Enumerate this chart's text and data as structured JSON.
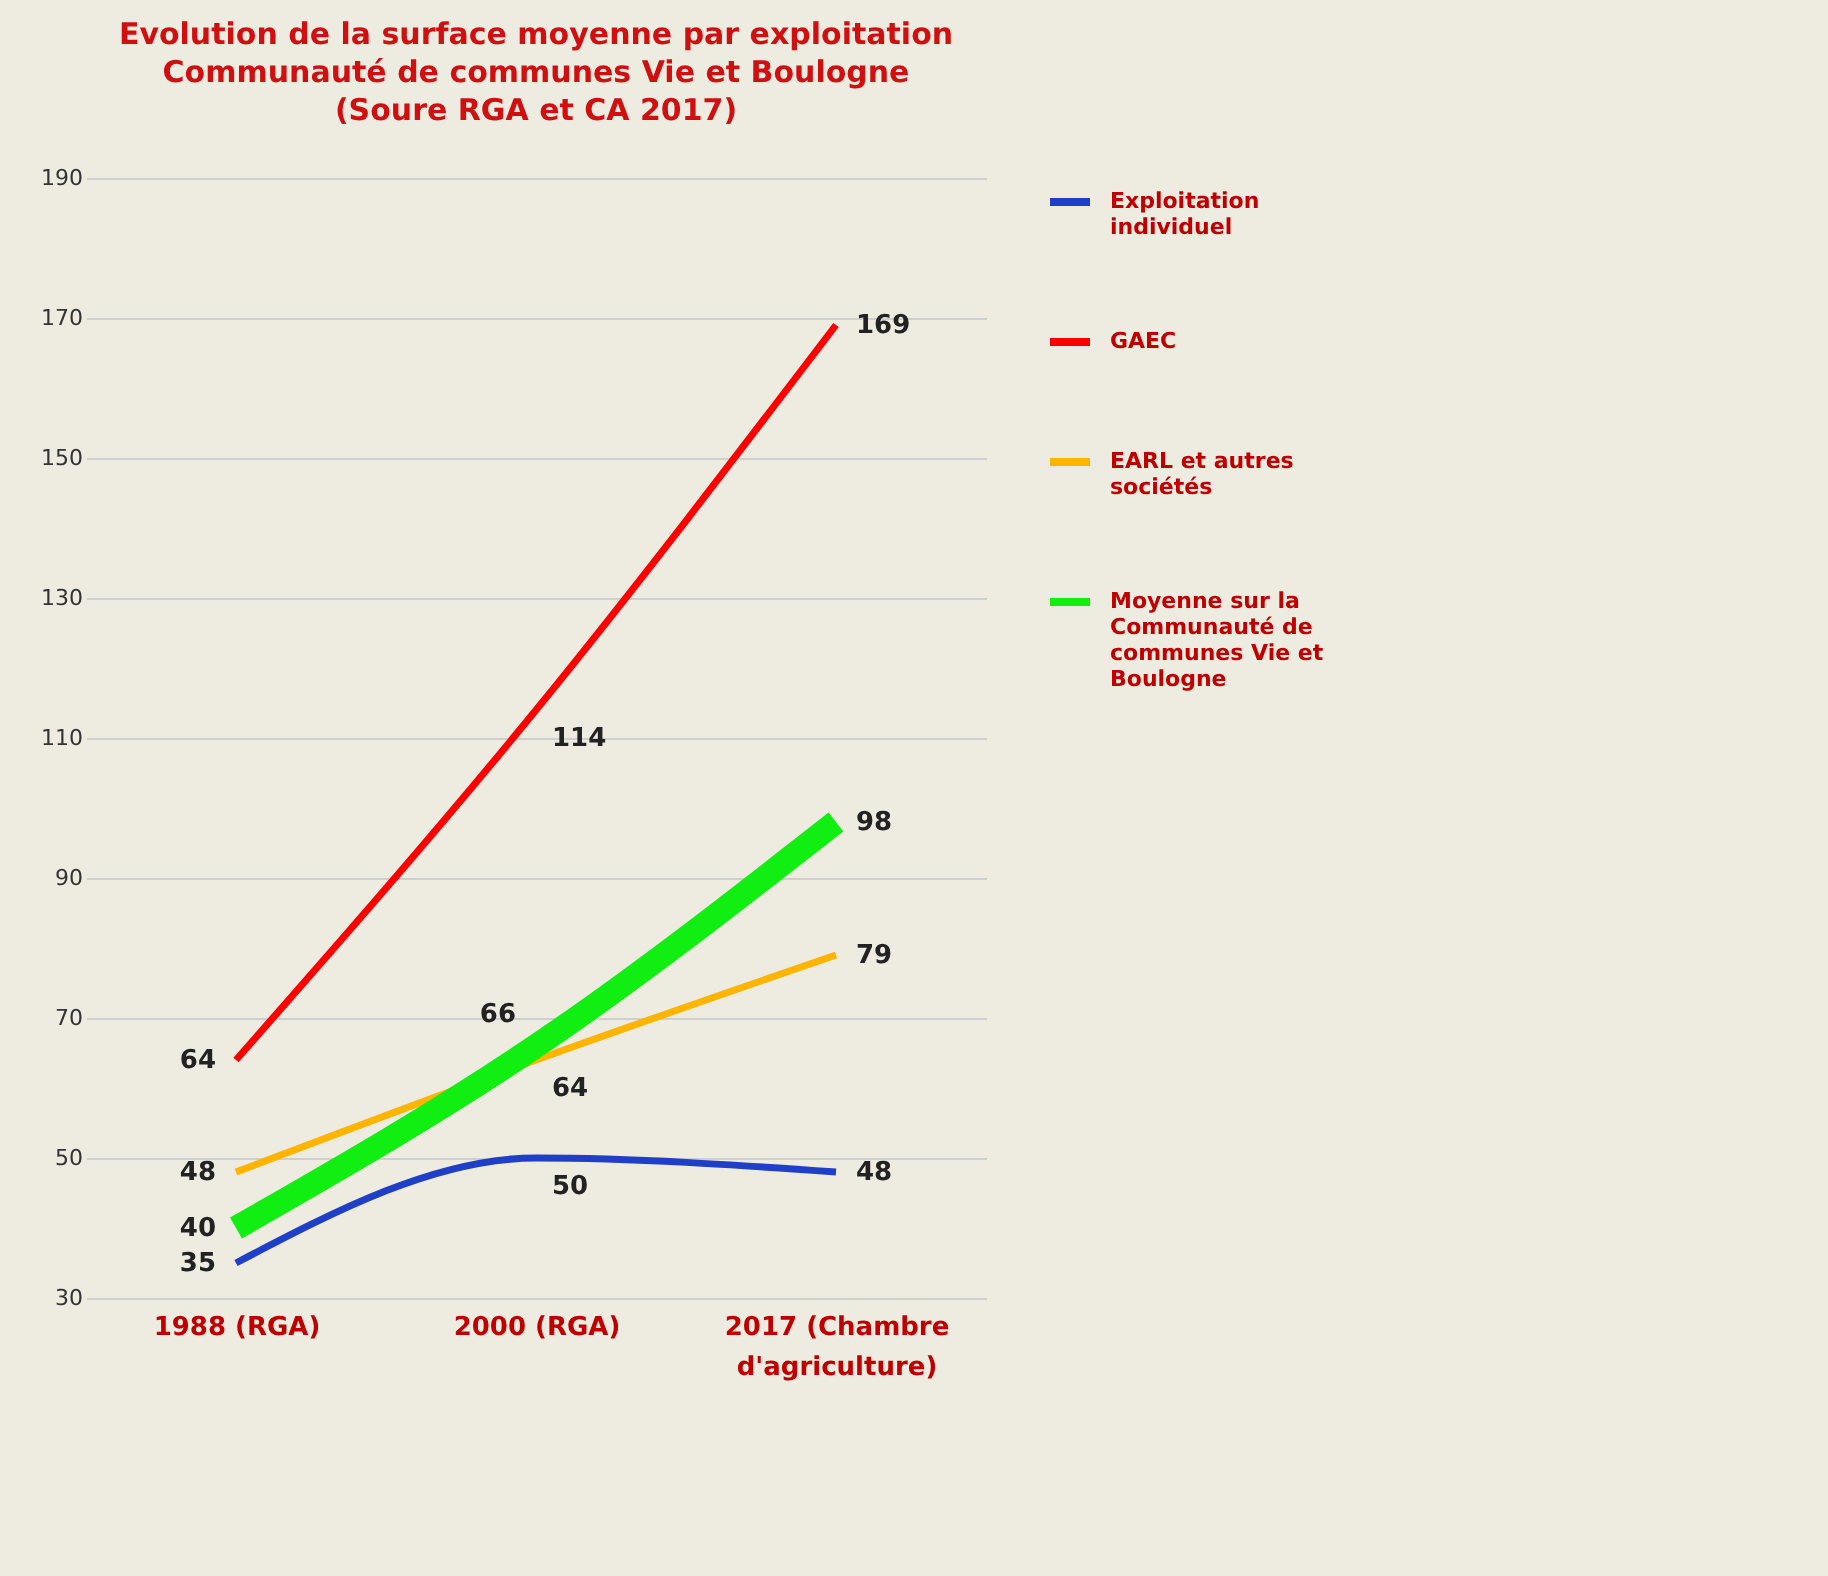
{
  "chart_data": {
    "type": "line",
    "title": "Evolution de la surface moyenne par exploitation\nCommunauté de communes Vie et Boulogne\n(Soure RGA et CA 2017)",
    "categories": [
      "1988 (RGA)",
      "2000 (RGA)",
      "2017 (Chambre d'agriculture)"
    ],
    "series": [
      {
        "name": "Exploitation individuel",
        "color": "#1f3fc8",
        "values": [
          35,
          50,
          48
        ]
      },
      {
        "name": "GAEC",
        "color": "#ff0000",
        "values": [
          64,
          114,
          169
        ]
      },
      {
        "name": "EARL et autres sociétés",
        "color": "#ffb400",
        "values": [
          48,
          64,
          79
        ]
      },
      {
        "name": "Moyenne sur la Communauté de communes Vie et Boulogne",
        "color": "#11ee11",
        "values": [
          40,
          66,
          98
        ]
      }
    ],
    "ylim": [
      30,
      190
    ],
    "yticks": [
      30,
      50,
      70,
      90,
      110,
      130,
      150,
      170,
      190
    ],
    "grid": "y",
    "legend": "right",
    "data_labels": true
  }
}
